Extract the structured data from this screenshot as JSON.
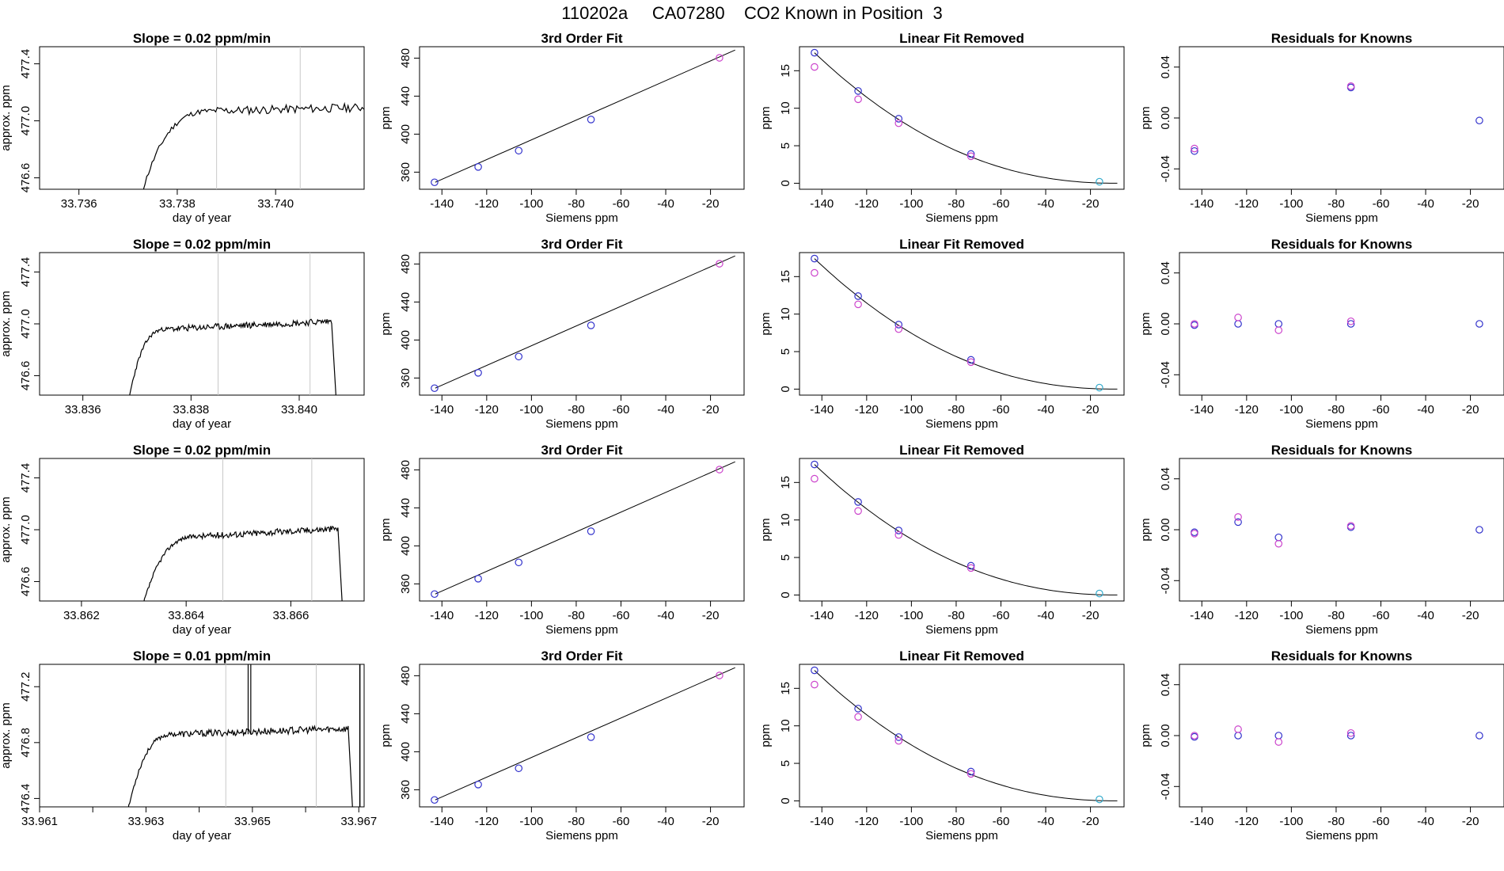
{
  "page": {
    "title": "110202a     CA07280    CO2 Known in Position  3"
  },
  "colors": {
    "first_fit": "#3333cc",
    "second_fit": "#cc44cc",
    "zero_point": "#33aacc",
    "trace": "#000000",
    "vline": "#c8c8c8",
    "axis": "#000000"
  },
  "chart_data": [
    {
      "type": "line",
      "title": "Slope =  0.02  ppm/min",
      "xlabel": "day of year",
      "ylabel": "approx. ppm",
      "xlim": [
        33.7352,
        33.7418
      ],
      "ylim": [
        476.52,
        477.52
      ],
      "xticks": [
        33.736,
        33.738,
        33.74
      ],
      "xtick_labels": [
        "33.736",
        "33.738",
        "33.740"
      ],
      "yticks": [
        476.6,
        477.0,
        477.4
      ],
      "ytick_labels": [
        "476.6",
        "477.0",
        "477.4"
      ],
      "vlines": [
        33.7388,
        33.7405
      ],
      "trace": {
        "start": 33.7372,
        "rise": 33.7388,
        "end": 33.7451,
        "drop": 33.7452,
        "low": 476.4,
        "plateau": 477.07,
        "slope": 0.05,
        "noise": 0.03,
        "seed": 11
      }
    },
    {
      "type": "scatter",
      "title": "3rd Order Fit",
      "xlabel": "Siemens ppm",
      "ylabel": "ppm",
      "xlim": [
        -150,
        -5
      ],
      "ylim": [
        342,
        492
      ],
      "xticks": [
        -140,
        -120,
        -100,
        -80,
        -60,
        -40,
        -20
      ],
      "xtick_labels": [
        "-140",
        "-120",
        "-100",
        "-80",
        "-60",
        "-40",
        "-20"
      ],
      "yticks": [
        360,
        400,
        440,
        480
      ],
      "ytick_labels": [
        "360",
        "400",
        "440",
        "480"
      ],
      "curve": {
        "x": [
          -143,
          -9
        ],
        "y": [
          349.3,
          488.5
        ]
      },
      "series": [
        {
          "x": [
            -143.3,
            -123.8,
            -105.7,
            -73.4
          ],
          "y": [
            349.3,
            365.5,
            382.6,
            415.4
          ],
          "color": "#3333cc"
        },
        {
          "x": [
            -16
          ],
          "y": [
            480.3
          ],
          "color": "#cc44cc"
        }
      ]
    },
    {
      "type": "scatter",
      "title": "Linear Fit Removed",
      "xlabel": "Siemens ppm",
      "ylabel": "ppm",
      "xlim": [
        -150,
        -5
      ],
      "ylim": [
        -0.8,
        18.2
      ],
      "xticks": [
        -140,
        -120,
        -100,
        -80,
        -60,
        -40,
        -20
      ],
      "xtick_labels": [
        "-140",
        "-120",
        "-100",
        "-80",
        "-60",
        "-40",
        "-20"
      ],
      "yticks": [
        0,
        5,
        10,
        15
      ],
      "ytick_labels": [
        "0",
        "5",
        "10",
        "15"
      ],
      "curve": {
        "x0": -143.3,
        "x1": -8,
        "y0": 17.4,
        "p": 2.2
      },
      "series": [
        {
          "x": [
            -143.3,
            -123.8,
            -105.7,
            -73.4
          ],
          "y": [
            17.4,
            12.3,
            8.6,
            3.9
          ],
          "color": "#3333cc"
        },
        {
          "x": [
            -143.3,
            -123.8,
            -105.7,
            -73.4
          ],
          "y": [
            15.5,
            11.2,
            8.0,
            3.6
          ],
          "color": "#cc44cc"
        },
        {
          "x": [
            -16
          ],
          "y": [
            0.2
          ],
          "color": "#33aacc"
        }
      ]
    },
    {
      "type": "scatter",
      "title": "Residuals for Knowns",
      "xlabel": "Siemens ppm",
      "ylabel": "ppm",
      "xlim": [
        -150,
        -5
      ],
      "ylim": [
        -0.056,
        0.056
      ],
      "xticks": [
        -140,
        -120,
        -100,
        -80,
        -60,
        -40,
        -20
      ],
      "xtick_labels": [
        "-140",
        "-120",
        "-100",
        "-80",
        "-60",
        "-40",
        "-20"
      ],
      "yticks": [
        -0.04,
        0.0,
        0.04
      ],
      "ytick_labels": [
        "-0.04",
        "0.00",
        "0.04"
      ],
      "series": [
        {
          "x": [
            -143.3,
            -73.4,
            -16
          ],
          "y": [
            -0.026,
            0.024,
            -0.002
          ],
          "color": "#3333cc"
        },
        {
          "x": [
            -143.3,
            -73.4
          ],
          "y": [
            -0.024,
            0.025
          ],
          "color": "#cc44cc"
        }
      ]
    },
    {
      "type": "line",
      "title": "Slope =  0.02  ppm/min",
      "xlabel": "day of year",
      "ylabel": "approx. ppm",
      "xlim": [
        33.8352,
        33.8412
      ],
      "ylim": [
        476.45,
        477.55
      ],
      "xticks": [
        33.836,
        33.838,
        33.84
      ],
      "xtick_labels": [
        "33.836",
        "33.838",
        "33.840"
      ],
      "yticks": [
        476.6,
        477.0,
        477.4
      ],
      "ytick_labels": [
        "476.6",
        "477.0",
        "477.4"
      ],
      "vlines": [
        33.8385,
        33.8402
      ],
      "trace": {
        "start": 33.8368,
        "rise": 33.8376,
        "end": 33.8406,
        "drop": 33.8407,
        "low": 476.3,
        "plateau": 476.96,
        "slope": 0.06,
        "noise": 0.025,
        "seed": 23
      }
    },
    {
      "type": "scatter",
      "title": "3rd Order Fit",
      "xlabel": "Siemens ppm",
      "ylabel": "ppm",
      "xlim": [
        -150,
        -5
      ],
      "ylim": [
        342,
        492
      ],
      "xticks": [
        -140,
        -120,
        -100,
        -80,
        -60,
        -40,
        -20
      ],
      "xtick_labels": [
        "-140",
        "-120",
        "-100",
        "-80",
        "-60",
        "-40",
        "-20"
      ],
      "yticks": [
        360,
        400,
        440,
        480
      ],
      "ytick_labels": [
        "360",
        "400",
        "440",
        "480"
      ],
      "curve": {
        "x": [
          -143,
          -9
        ],
        "y": [
          349.3,
          488.5
        ]
      },
      "series": [
        {
          "x": [
            -143.3,
            -123.8,
            -105.7,
            -73.4
          ],
          "y": [
            349.3,
            365.5,
            382.6,
            415.4
          ],
          "color": "#3333cc"
        },
        {
          "x": [
            -16
          ],
          "y": [
            480.3
          ],
          "color": "#cc44cc"
        }
      ]
    },
    {
      "type": "scatter",
      "title": "Linear Fit Removed",
      "xlabel": "Siemens ppm",
      "ylabel": "ppm",
      "xlim": [
        -150,
        -5
      ],
      "ylim": [
        -0.8,
        18.2
      ],
      "xticks": [
        -140,
        -120,
        -100,
        -80,
        -60,
        -40,
        -20
      ],
      "xtick_labels": [
        "-140",
        "-120",
        "-100",
        "-80",
        "-60",
        "-40",
        "-20"
      ],
      "yticks": [
        0,
        5,
        10,
        15
      ],
      "ytick_labels": [
        "0",
        "5",
        "10",
        "15"
      ],
      "curve": {
        "x0": -143.3,
        "x1": -8,
        "y0": 17.4,
        "p": 2.2
      },
      "series": [
        {
          "x": [
            -143.3,
            -123.8,
            -105.7,
            -73.4
          ],
          "y": [
            17.4,
            12.4,
            8.6,
            3.9
          ],
          "color": "#3333cc"
        },
        {
          "x": [
            -143.3,
            -123.8,
            -105.7,
            -73.4
          ],
          "y": [
            15.5,
            11.3,
            8.0,
            3.6
          ],
          "color": "#cc44cc"
        },
        {
          "x": [
            -16
          ],
          "y": [
            0.2
          ],
          "color": "#33aacc"
        }
      ]
    },
    {
      "type": "scatter",
      "title": "Residuals for Knowns",
      "xlabel": "Siemens ppm",
      "ylabel": "ppm",
      "xlim": [
        -150,
        -5
      ],
      "ylim": [
        -0.056,
        0.056
      ],
      "xticks": [
        -140,
        -120,
        -100,
        -80,
        -60,
        -40,
        -20
      ],
      "xtick_labels": [
        "-140",
        "-120",
        "-100",
        "-80",
        "-60",
        "-40",
        "-20"
      ],
      "yticks": [
        -0.04,
        0.0,
        0.04
      ],
      "ytick_labels": [
        "-0.04",
        "0.00",
        "0.04"
      ],
      "series": [
        {
          "x": [
            -143.3,
            -123.8,
            -105.7,
            -73.4,
            -16
          ],
          "y": [
            -0.001,
            0.0,
            0.0,
            0.0,
            0.0
          ],
          "color": "#3333cc"
        },
        {
          "x": [
            -143.3,
            -123.8,
            -105.7,
            -73.4
          ],
          "y": [
            0.0,
            0.005,
            -0.005,
            0.002
          ],
          "color": "#cc44cc"
        }
      ]
    },
    {
      "type": "line",
      "title": "Slope =  0.02  ppm/min",
      "xlabel": "day of year",
      "ylabel": "approx. ppm",
      "xlim": [
        33.8612,
        33.8674
      ],
      "ylim": [
        476.45,
        477.55
      ],
      "xticks": [
        33.862,
        33.864,
        33.866
      ],
      "xtick_labels": [
        "33.862",
        "33.864",
        "33.866"
      ],
      "yticks": [
        476.6,
        477.0,
        477.4
      ],
      "ytick_labels": [
        "476.6",
        "477.0",
        "477.4"
      ],
      "vlines": [
        33.8647,
        33.8664
      ],
      "trace": {
        "start": 33.8631,
        "rise": 33.8643,
        "end": 33.8669,
        "drop": 33.867,
        "low": 476.3,
        "plateau": 476.95,
        "slope": 0.06,
        "noise": 0.025,
        "seed": 37
      }
    },
    {
      "type": "scatter",
      "title": "3rd Order Fit",
      "xlabel": "Siemens ppm",
      "ylabel": "ppm",
      "xlim": [
        -150,
        -5
      ],
      "ylim": [
        342,
        492
      ],
      "xticks": [
        -140,
        -120,
        -100,
        -80,
        -60,
        -40,
        -20
      ],
      "xtick_labels": [
        "-140",
        "-120",
        "-100",
        "-80",
        "-60",
        "-40",
        "-20"
      ],
      "yticks": [
        360,
        400,
        440,
        480
      ],
      "ytick_labels": [
        "360",
        "400",
        "440",
        "480"
      ],
      "curve": {
        "x": [
          -143,
          -9
        ],
        "y": [
          349.3,
          488.5
        ]
      },
      "series": [
        {
          "x": [
            -143.3,
            -123.8,
            -105.7,
            -73.4
          ],
          "y": [
            349.3,
            365.5,
            382.6,
            415.4
          ],
          "color": "#3333cc"
        },
        {
          "x": [
            -16
          ],
          "y": [
            480.3
          ],
          "color": "#cc44cc"
        }
      ]
    },
    {
      "type": "scatter",
      "title": "Linear Fit Removed",
      "xlabel": "Siemens ppm",
      "ylabel": "ppm",
      "xlim": [
        -150,
        -5
      ],
      "ylim": [
        -0.8,
        18.2
      ],
      "xticks": [
        -140,
        -120,
        -100,
        -80,
        -60,
        -40,
        -20
      ],
      "xtick_labels": [
        "-140",
        "-120",
        "-100",
        "-80",
        "-60",
        "-40",
        "-20"
      ],
      "yticks": [
        0,
        5,
        10,
        15
      ],
      "ytick_labels": [
        "0",
        "5",
        "10",
        "15"
      ],
      "curve": {
        "x0": -143.3,
        "x1": -8,
        "y0": 17.4,
        "p": 2.2
      },
      "series": [
        {
          "x": [
            -143.3,
            -123.8,
            -105.7,
            -73.4
          ],
          "y": [
            17.4,
            12.4,
            8.6,
            3.9
          ],
          "color": "#3333cc"
        },
        {
          "x": [
            -143.3,
            -123.8,
            -105.7,
            -73.4
          ],
          "y": [
            15.5,
            11.2,
            8.0,
            3.6
          ],
          "color": "#cc44cc"
        },
        {
          "x": [
            -16
          ],
          "y": [
            0.2
          ],
          "color": "#33aacc"
        }
      ]
    },
    {
      "type": "scatter",
      "title": "Residuals for Knowns",
      "xlabel": "Siemens ppm",
      "ylabel": "ppm",
      "xlim": [
        -150,
        -5
      ],
      "ylim": [
        -0.056,
        0.056
      ],
      "xticks": [
        -140,
        -120,
        -100,
        -80,
        -60,
        -40,
        -20
      ],
      "xtick_labels": [
        "-140",
        "-120",
        "-100",
        "-80",
        "-60",
        "-40",
        "-20"
      ],
      "yticks": [
        -0.04,
        0.0,
        0.04
      ],
      "ytick_labels": [
        "-0.04",
        "0.00",
        "0.04"
      ],
      "series": [
        {
          "x": [
            -143.3,
            -123.8,
            -105.7,
            -73.4,
            -16
          ],
          "y": [
            -0.002,
            0.006,
            -0.006,
            0.002,
            0.0
          ],
          "color": "#3333cc"
        },
        {
          "x": [
            -143.3,
            -123.8,
            -105.7,
            -73.4
          ],
          "y": [
            -0.003,
            0.01,
            -0.011,
            0.003
          ],
          "color": "#cc44cc"
        }
      ]
    },
    {
      "type": "line",
      "title": "Slope =  0.01  ppm/min",
      "xlabel": "day of year",
      "ylabel": "approx. ppm",
      "xlim": [
        33.961,
        33.9671
      ],
      "ylim": [
        476.34,
        477.36
      ],
      "xticks": [
        33.961,
        33.962,
        33.963,
        33.964,
        33.965,
        33.966,
        33.967
      ],
      "xtick_labels": [
        "33.961",
        "",
        "33.963",
        "",
        "33.965",
        "",
        "33.967"
      ],
      "yticks": [
        476.4,
        476.8,
        477.2
      ],
      "ytick_labels": [
        "476.4",
        "476.8",
        "477.2"
      ],
      "vlines": [
        33.9645,
        33.9662
      ],
      "spikes": [
        33.96492,
        33.96497
      ],
      "blackline": 33.96702,
      "trace": {
        "start": 33.9626,
        "rise": 33.9636,
        "end": 33.9668,
        "drop": 33.9669,
        "low": 476.2,
        "plateau": 476.86,
        "slope": 0.04,
        "noise": 0.025,
        "seed": 53
      }
    },
    {
      "type": "scatter",
      "title": "3rd Order Fit",
      "xlabel": "Siemens ppm",
      "ylabel": "ppm",
      "xlim": [
        -150,
        -5
      ],
      "ylim": [
        342,
        492
      ],
      "xticks": [
        -140,
        -120,
        -100,
        -80,
        -60,
        -40,
        -20
      ],
      "xtick_labels": [
        "-140",
        "-120",
        "-100",
        "-80",
        "-60",
        "-40",
        "-20"
      ],
      "yticks": [
        360,
        400,
        440,
        480
      ],
      "ytick_labels": [
        "360",
        "400",
        "440",
        "480"
      ],
      "curve": {
        "x": [
          -143,
          -9
        ],
        "y": [
          349.3,
          488.5
        ]
      },
      "series": [
        {
          "x": [
            -143.3,
            -123.8,
            -105.7,
            -73.4
          ],
          "y": [
            349.3,
            365.5,
            382.6,
            415.4
          ],
          "color": "#3333cc"
        },
        {
          "x": [
            -16
          ],
          "y": [
            480.3
          ],
          "color": "#cc44cc"
        }
      ]
    },
    {
      "type": "scatter",
      "title": "Linear Fit Removed",
      "xlabel": "Siemens ppm",
      "ylabel": "ppm",
      "xlim": [
        -150,
        -5
      ],
      "ylim": [
        -0.8,
        18.2
      ],
      "xticks": [
        -140,
        -120,
        -100,
        -80,
        -60,
        -40,
        -20
      ],
      "xtick_labels": [
        "-140",
        "-120",
        "-100",
        "-80",
        "-60",
        "-40",
        "-20"
      ],
      "yticks": [
        0,
        5,
        10,
        15
      ],
      "ytick_labels": [
        "0",
        "5",
        "10",
        "15"
      ],
      "curve": {
        "x0": -143.3,
        "x1": -8,
        "y0": 17.4,
        "p": 2.2
      },
      "series": [
        {
          "x": [
            -143.3,
            -123.8,
            -105.7,
            -73.4
          ],
          "y": [
            17.4,
            12.3,
            8.5,
            3.9
          ],
          "color": "#3333cc"
        },
        {
          "x": [
            -143.3,
            -123.8,
            -105.7,
            -73.4
          ],
          "y": [
            15.5,
            11.2,
            8.0,
            3.6
          ],
          "color": "#cc44cc"
        },
        {
          "x": [
            -16
          ],
          "y": [
            0.2
          ],
          "color": "#33aacc"
        }
      ]
    },
    {
      "type": "scatter",
      "title": "Residuals for Knowns",
      "xlabel": "Siemens ppm",
      "ylabel": "ppm",
      "xlim": [
        -150,
        -5
      ],
      "ylim": [
        -0.056,
        0.056
      ],
      "xticks": [
        -140,
        -120,
        -100,
        -80,
        -60,
        -40,
        -20
      ],
      "xtick_labels": [
        "-140",
        "-120",
        "-100",
        "-80",
        "-60",
        "-40",
        "-20"
      ],
      "yticks": [
        -0.04,
        0.0,
        0.04
      ],
      "ytick_labels": [
        "-0.04",
        "0.00",
        "0.04"
      ],
      "series": [
        {
          "x": [
            -143.3,
            -123.8,
            -105.7,
            -73.4,
            -16
          ],
          "y": [
            -0.001,
            0.0,
            0.0,
            0.0,
            0.0
          ],
          "color": "#3333cc"
        },
        {
          "x": [
            -143.3,
            -123.8,
            -105.7,
            -73.4
          ],
          "y": [
            0.0,
            0.005,
            -0.005,
            0.002
          ],
          "color": "#cc44cc"
        }
      ]
    }
  ]
}
